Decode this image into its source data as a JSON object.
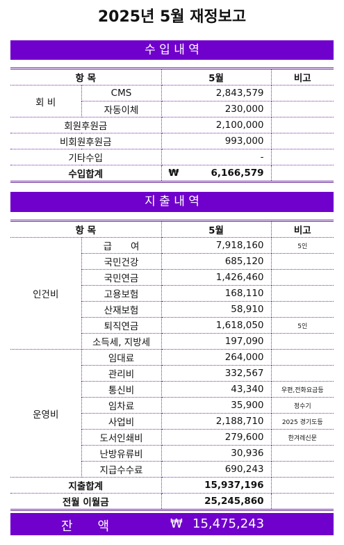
{
  "title": "2025년 5월 재정보고",
  "income": {
    "title": "수 입 내 역",
    "header": [
      "항 목",
      "5월",
      "비고"
    ],
    "sections": [
      {
        "group": "회 비",
        "items": [
          {
            "item": "CMS",
            "amount": "2,843,579"
          },
          {
            "item": "자동이체",
            "amount": "230,000"
          }
        ]
      },
      {
        "item": "회원후원금",
        "amount": "2,100,000"
      },
      {
        "item": "비회원후원금",
        "amount": "993,000"
      },
      {
        "item": "기타수입",
        "amount": "-"
      }
    ],
    "totals": [
      {
        "label": "수입합계",
        "currency": "₩",
        "amount": "6,166,579"
      }
    ]
  },
  "expense": {
    "title": "지 출 내 역",
    "header": [
      "항 목",
      "5월",
      "비고"
    ],
    "sections": [
      {
        "group": "인건비",
        "items": [
          {
            "item": "급　　여",
            "amount": "7,918,160",
            "note": "5인"
          },
          {
            "item": "국민건강",
            "amount": "685,120"
          },
          {
            "item": "국민연금",
            "amount": "1,426,460"
          },
          {
            "item": "고용보험",
            "amount": "168,110"
          },
          {
            "item": "산재보험",
            "amount": "58,910"
          },
          {
            "item": "퇴직연금",
            "amount": "1,618,050",
            "note": "5인"
          },
          {
            "item": "소득세, 지방세",
            "amount": "197,090"
          }
        ]
      },
      {
        "group": "운영비",
        "items": [
          {
            "item": "임대료",
            "amount": "264,000"
          },
          {
            "item": "관리비",
            "amount": "332,567"
          },
          {
            "item": "통신비",
            "amount": "43,340",
            "note": "우편,전화요금등"
          },
          {
            "item": "임차료",
            "amount": "35,900",
            "note": "정수기"
          },
          {
            "item": "사업비",
            "amount": "2,188,710",
            "note": "2025 경기도등"
          },
          {
            "item": "도서인쇄비",
            "amount": "279,600",
            "note": "한겨레신문"
          },
          {
            "item": "난방유류비",
            "amount": "30,936"
          },
          {
            "item": "지급수수료",
            "amount": "690,243"
          }
        ]
      }
    ],
    "totals": [
      {
        "label": "지출합계",
        "amount": "15,937,196"
      },
      {
        "label": "전월 이월금",
        "amount": "25,245,860"
      }
    ]
  },
  "balance": {
    "label": "잔　　액",
    "currency": "₩",
    "amount": "15,475,243"
  }
}
